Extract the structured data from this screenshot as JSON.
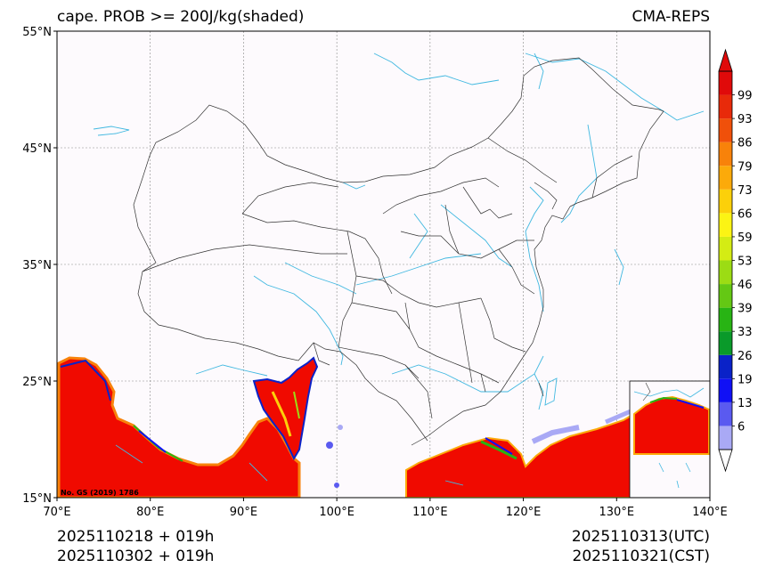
{
  "header": {
    "title_left": "cape. PROB >= 200J/kg(shaded)",
    "title_right": "CMA-REPS"
  },
  "map": {
    "lon_labels": [
      "70°E",
      "80°E",
      "90°E",
      "100°E",
      "110°E",
      "120°E",
      "130°E",
      "140°E"
    ],
    "lat_labels": [
      "55°N",
      "45°N",
      "35°N",
      "25°N",
      "15°N"
    ],
    "credit": "No. GS (2019) 1786",
    "colors": {
      "background": "#fdfafd",
      "border": "#333333",
      "river": "#40b8e0",
      "grid": "#888888",
      "field_high": "#f00a00"
    }
  },
  "colorbar": {
    "ticks": [
      "6",
      "13",
      "19",
      "26",
      "33",
      "39",
      "46",
      "53",
      "59",
      "66",
      "73",
      "79",
      "86",
      "93",
      "99"
    ],
    "colors": [
      "#a9a9f5",
      "#5a5af0",
      "#1010f5",
      "#0a22c8",
      "#0a9a2a",
      "#28b414",
      "#64c814",
      "#9cdc14",
      "#d4ec14",
      "#fcf414",
      "#fcd00a",
      "#fcaa0a",
      "#f8820a",
      "#f0500a",
      "#e82a0a",
      "#e00a0a"
    ]
  },
  "footer": {
    "init_utc": "2025110218  +  019h",
    "init_cst": "2025110302  +  019h",
    "valid_utc": "2025110313(UTC)",
    "valid_cst": "2025110321(CST)"
  }
}
